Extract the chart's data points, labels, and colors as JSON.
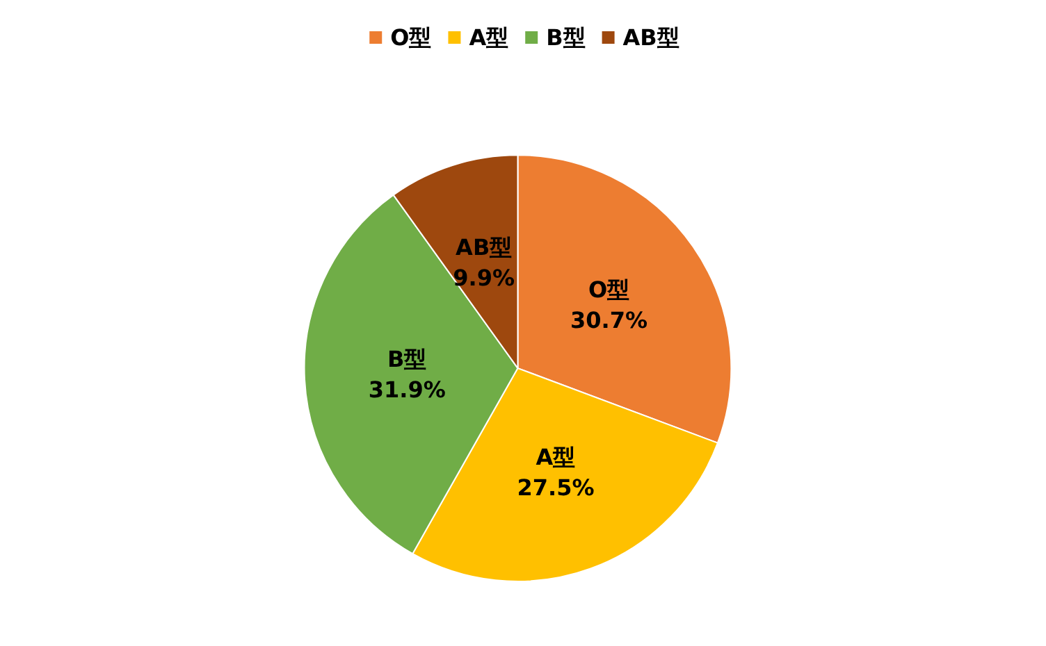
{
  "chart_data": {
    "type": "pie",
    "categories": [
      "O型",
      "A型",
      "B型",
      "AB型"
    ],
    "values": [
      30.7,
      27.5,
      31.9,
      9.9
    ],
    "colors": [
      "#ed7d31",
      "#ffc000",
      "#70ad47",
      "#9e480e"
    ],
    "value_labels": [
      "30.7%",
      "27.5%",
      "31.9%",
      "9.9%"
    ],
    "legend": "top"
  }
}
